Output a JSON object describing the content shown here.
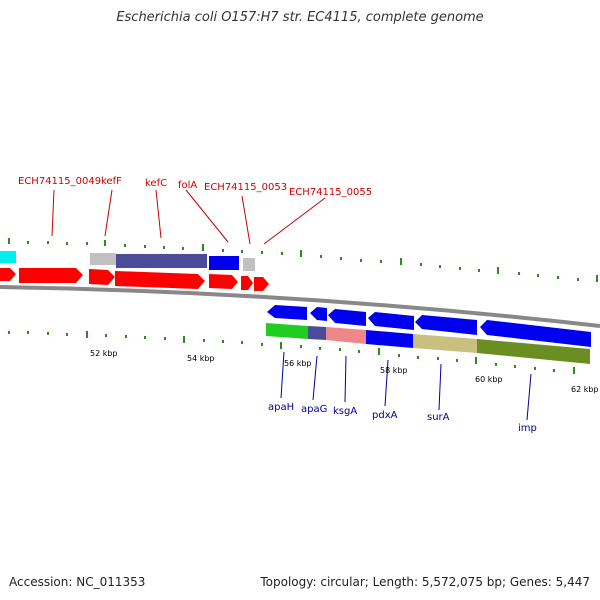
{
  "title": "Escherichia coli O157:H7 str. EC4115, complete genome",
  "footer": {
    "accession": "Accession: NC_011353",
    "summary": "Topology: circular; Length: 5,572,075 bp; Genes: 5,447"
  },
  "colors": {
    "cds_forward": "#ff0000",
    "cds_reverse": "#0000ff",
    "gene_label_top": "#cc0000",
    "gene_label_bottom": "#000099",
    "ticks": "#2e8b1e",
    "backbone": "#888888"
  },
  "top_labels": [
    "ECH74115_0049",
    "kefF",
    "kefC",
    "folA",
    "ECH74115_0053",
    "ECH74115_0055"
  ],
  "bottom_labels": [
    "apaH",
    "apaG",
    "ksgA",
    "pdxA",
    "surA",
    "imp"
  ],
  "scale_labels": [
    "52 kbp",
    "54 kbp",
    "56 kbp",
    "58 kbp",
    "60 kbp",
    "62 kbp"
  ]
}
